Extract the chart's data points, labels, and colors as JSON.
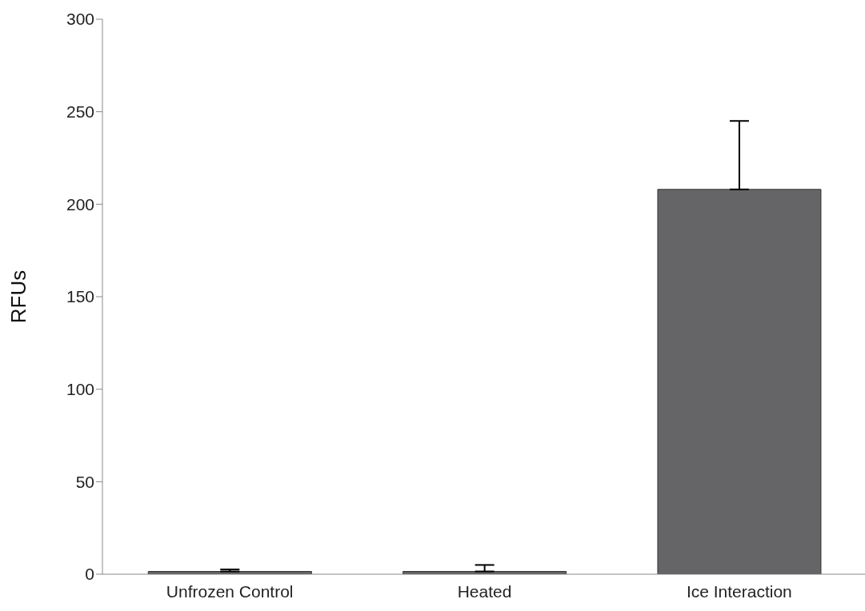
{
  "chart_data": {
    "type": "bar",
    "ylabel": "RFUs",
    "categories": [
      "Unfrozen Control",
      "Heated",
      "Ice Interaction"
    ],
    "values": [
      1.5,
      1.5,
      208
    ],
    "errors": [
      [
        1.5,
        2.6
      ],
      [
        1.5,
        5
      ],
      [
        208,
        245
      ]
    ],
    "color": "#656567",
    "ylim": [
      0,
      300
    ],
    "yticks": [
      0,
      50,
      100,
      150,
      200,
      250,
      300
    ],
    "grid": false,
    "legend": false
  }
}
